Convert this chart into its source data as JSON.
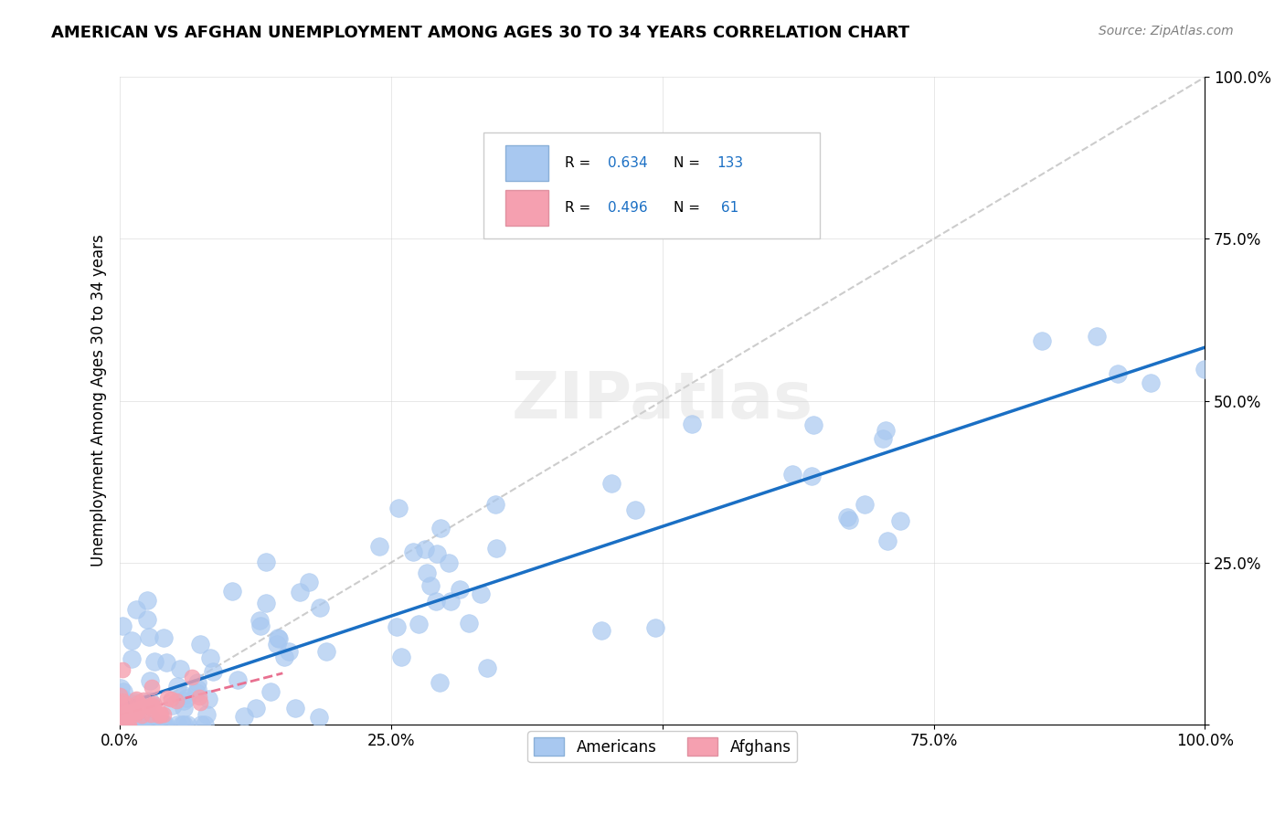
{
  "title": "AMERICAN VS AFGHAN UNEMPLOYMENT AMONG AGES 30 TO 34 YEARS CORRELATION CHART",
  "source": "Source: ZipAtlas.com",
  "ylabel": "Unemployment Among Ages 30 to 34 years",
  "american_R": 0.634,
  "american_N": 133,
  "afghan_R": 0.496,
  "afghan_N": 61,
  "american_color": "#a8c8f0",
  "afghan_color": "#f5a0b0",
  "american_line_color": "#1a6fc4",
  "afghan_line_color": "#e87090",
  "ref_line_color": "#c0c0c0",
  "background_color": "#ffffff",
  "watermark": "ZIPatlas",
  "xlim": [
    0,
    1
  ],
  "ylim": [
    0,
    1
  ],
  "xticks": [
    0,
    0.25,
    0.5,
    0.75,
    1.0
  ],
  "yticks": [
    0,
    0.25,
    0.5,
    0.75,
    1.0
  ],
  "xticklabels": [
    "0.0%",
    "25.0%",
    "50.0%",
    "75.0%",
    "100.0%"
  ],
  "yticklabels": [
    "",
    "25.0%",
    "50.0%",
    "75.0%",
    "100.0%"
  ],
  "americans_legend": "Americans",
  "afghans_legend": "Afghans",
  "american_seed": 42,
  "afghan_seed": 7
}
